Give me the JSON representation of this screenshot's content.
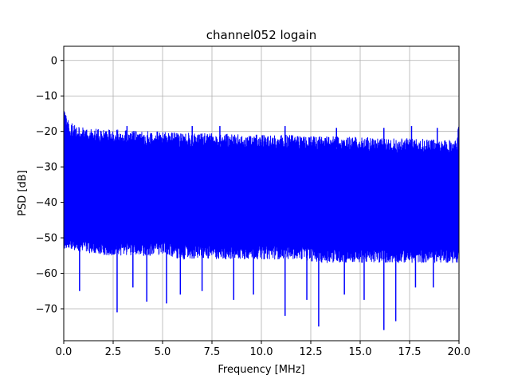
{
  "chart_data": {
    "type": "line",
    "title": "channel052 logain",
    "xlabel": "Frequency [MHz]",
    "ylabel": "PSD [dB]",
    "xlim": [
      0,
      20
    ],
    "ylim": [
      -79,
      4
    ],
    "xticks": [
      0.0,
      2.5,
      5.0,
      7.5,
      10.0,
      12.5,
      15.0,
      17.5,
      20.0
    ],
    "xtick_labels": [
      "0.0",
      "2.5",
      "5.0",
      "7.5",
      "10.0",
      "12.5",
      "15.0",
      "17.5",
      "20.0"
    ],
    "yticks": [
      0,
      -10,
      -20,
      -30,
      -40,
      -50,
      -60,
      -70
    ],
    "ytick_labels": [
      "0",
      "−10",
      "−20",
      "−30",
      "−40",
      "−50",
      "−60",
      "−70"
    ],
    "grid": true,
    "legend": "none",
    "series": [
      {
        "color": "#0000ff",
        "upper_envelope": {
          "x": [
            0.0,
            0.1,
            0.3,
            0.5,
            1.0,
            2.0,
            3.0,
            4.0,
            5.0,
            6.0,
            7.0,
            8.0,
            9.0,
            10.0,
            11.0,
            12.0,
            13.0,
            14.0,
            15.0,
            16.0,
            17.0,
            18.0,
            19.0,
            19.9,
            20.0
          ],
          "y": [
            -13.5,
            -15,
            -17.5,
            -18,
            -19,
            -19.5,
            -19.5,
            -20,
            -20,
            -20.5,
            -20.5,
            -20.5,
            -21,
            -21,
            -21,
            -21,
            -21.5,
            -21.5,
            -21.5,
            -22,
            -22,
            -22,
            -22.5,
            -22.5,
            -14
          ]
        },
        "lower_envelope": {
          "x": [
            0.0,
            1.0,
            2.0,
            3.0,
            4.0,
            5.0,
            6.0,
            7.0,
            8.0,
            9.0,
            10.0,
            11.0,
            12.0,
            13.0,
            14.0,
            15.0,
            16.0,
            17.0,
            18.0,
            19.0,
            20.0
          ],
          "y": [
            -53,
            -54,
            -55,
            -55,
            -55,
            -55,
            -56,
            -56,
            -56,
            -56,
            -56,
            -56,
            -56,
            -57,
            -57,
            -57,
            -57,
            -57,
            -57,
            -57,
            -57
          ]
        },
        "spikes_up": [
          {
            "x": 3.2,
            "y": -18.5
          },
          {
            "x": 6.5,
            "y": -18.5
          },
          {
            "x": 7.9,
            "y": -18.5
          },
          {
            "x": 11.2,
            "y": -18.5
          },
          {
            "x": 13.8,
            "y": -19
          },
          {
            "x": 16.2,
            "y": -19
          },
          {
            "x": 17.6,
            "y": -18.5
          },
          {
            "x": 18.9,
            "y": -19
          }
        ],
        "spikes_down": [
          {
            "x": 0.8,
            "y": -65
          },
          {
            "x": 2.7,
            "y": -71
          },
          {
            "x": 3.5,
            "y": -64
          },
          {
            "x": 4.2,
            "y": -68
          },
          {
            "x": 5.2,
            "y": -68.5
          },
          {
            "x": 5.9,
            "y": -66
          },
          {
            "x": 7.0,
            "y": -65
          },
          {
            "x": 8.6,
            "y": -67.5
          },
          {
            "x": 9.6,
            "y": -66
          },
          {
            "x": 11.2,
            "y": -72
          },
          {
            "x": 12.3,
            "y": -67.5
          },
          {
            "x": 12.9,
            "y": -75
          },
          {
            "x": 14.2,
            "y": -66
          },
          {
            "x": 15.2,
            "y": -67.5
          },
          {
            "x": 16.2,
            "y": -76
          },
          {
            "x": 16.8,
            "y": -73.5
          },
          {
            "x": 17.8,
            "y": -64
          },
          {
            "x": 18.7,
            "y": -64
          }
        ]
      }
    ]
  }
}
